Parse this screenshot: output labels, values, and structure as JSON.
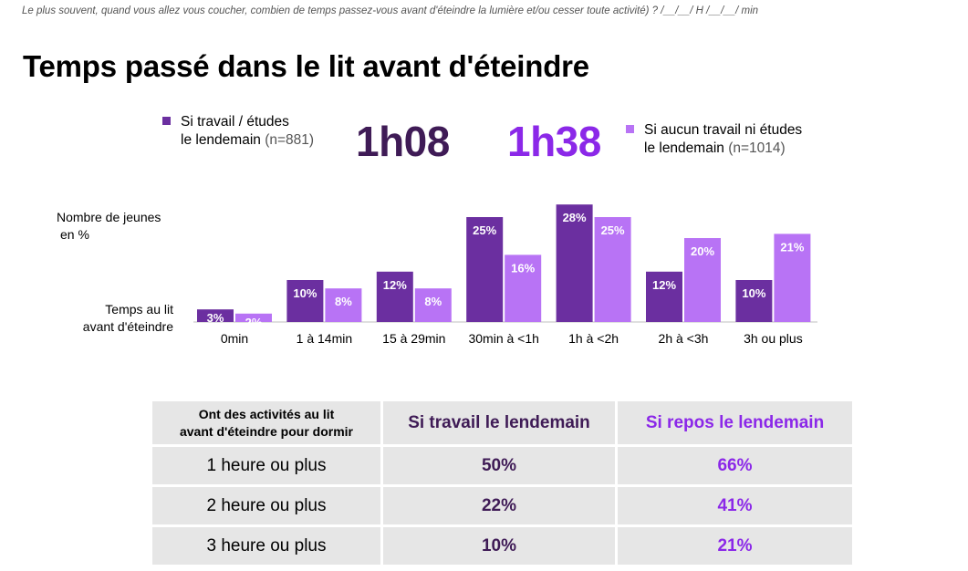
{
  "question": "Le plus souvent, quand vous allez vous coucher, combien de temps passez-vous avant d'éteindre la lumière et/ou cesser toute activité) ?  /__/__/ H /__/__/ min",
  "title": "Temps passé dans le lit avant d'éteindre",
  "legend": {
    "work": {
      "line1": "Si travail / études",
      "line2": "le lendemain",
      "n": "(n=881)",
      "color": "#6b2fa0"
    },
    "rest": {
      "line1": "Si aucun travail ni études",
      "line2": "le lendemain",
      "n": "(n=1014)",
      "color": "#b873f5"
    }
  },
  "averages": {
    "work": "1h08",
    "rest": "1h38"
  },
  "axis": {
    "y_line1": "Nombre de jeunes",
    "y_line2": "en %",
    "x_line1": "Temps au lit",
    "x_line2": "avant d'éteindre"
  },
  "chart_data": {
    "type": "bar",
    "title": "Temps passé dans le lit avant d'éteindre",
    "xlabel": "Temps au lit avant d'éteindre",
    "ylabel": "Nombre de jeunes en %",
    "categories": [
      "0min",
      "1 à 14min",
      "15 à 29min",
      "30min à <1h",
      "1h à <2h",
      "2h à <3h",
      "3h ou plus"
    ],
    "series": [
      {
        "name": "Si travail / études le lendemain (n=881)",
        "color": "#6b2fa0",
        "values": [
          3,
          10,
          12,
          25,
          28,
          12,
          10
        ]
      },
      {
        "name": "Si aucun travail ni études le lendemain (n=1014)",
        "color": "#b873f5",
        "values": [
          2,
          8,
          8,
          16,
          25,
          20,
          21
        ]
      }
    ],
    "value_suffix": "%",
    "ylim": [
      0,
      28
    ],
    "grid": false,
    "legend_position": "top"
  },
  "table": {
    "header_line1": "Ont des activités au lit",
    "header_line2": "avant d'éteindre pour dormir",
    "header_work": "Si travail le lendemain",
    "header_rest": "Si repos le lendemain",
    "rows": [
      {
        "label": "1 heure ou plus",
        "work": "50%",
        "rest": "66%"
      },
      {
        "label": "2 heure ou plus",
        "work": "22%",
        "rest": "41%"
      },
      {
        "label": "3 heure ou plus",
        "work": "10%",
        "rest": "21%"
      }
    ]
  }
}
